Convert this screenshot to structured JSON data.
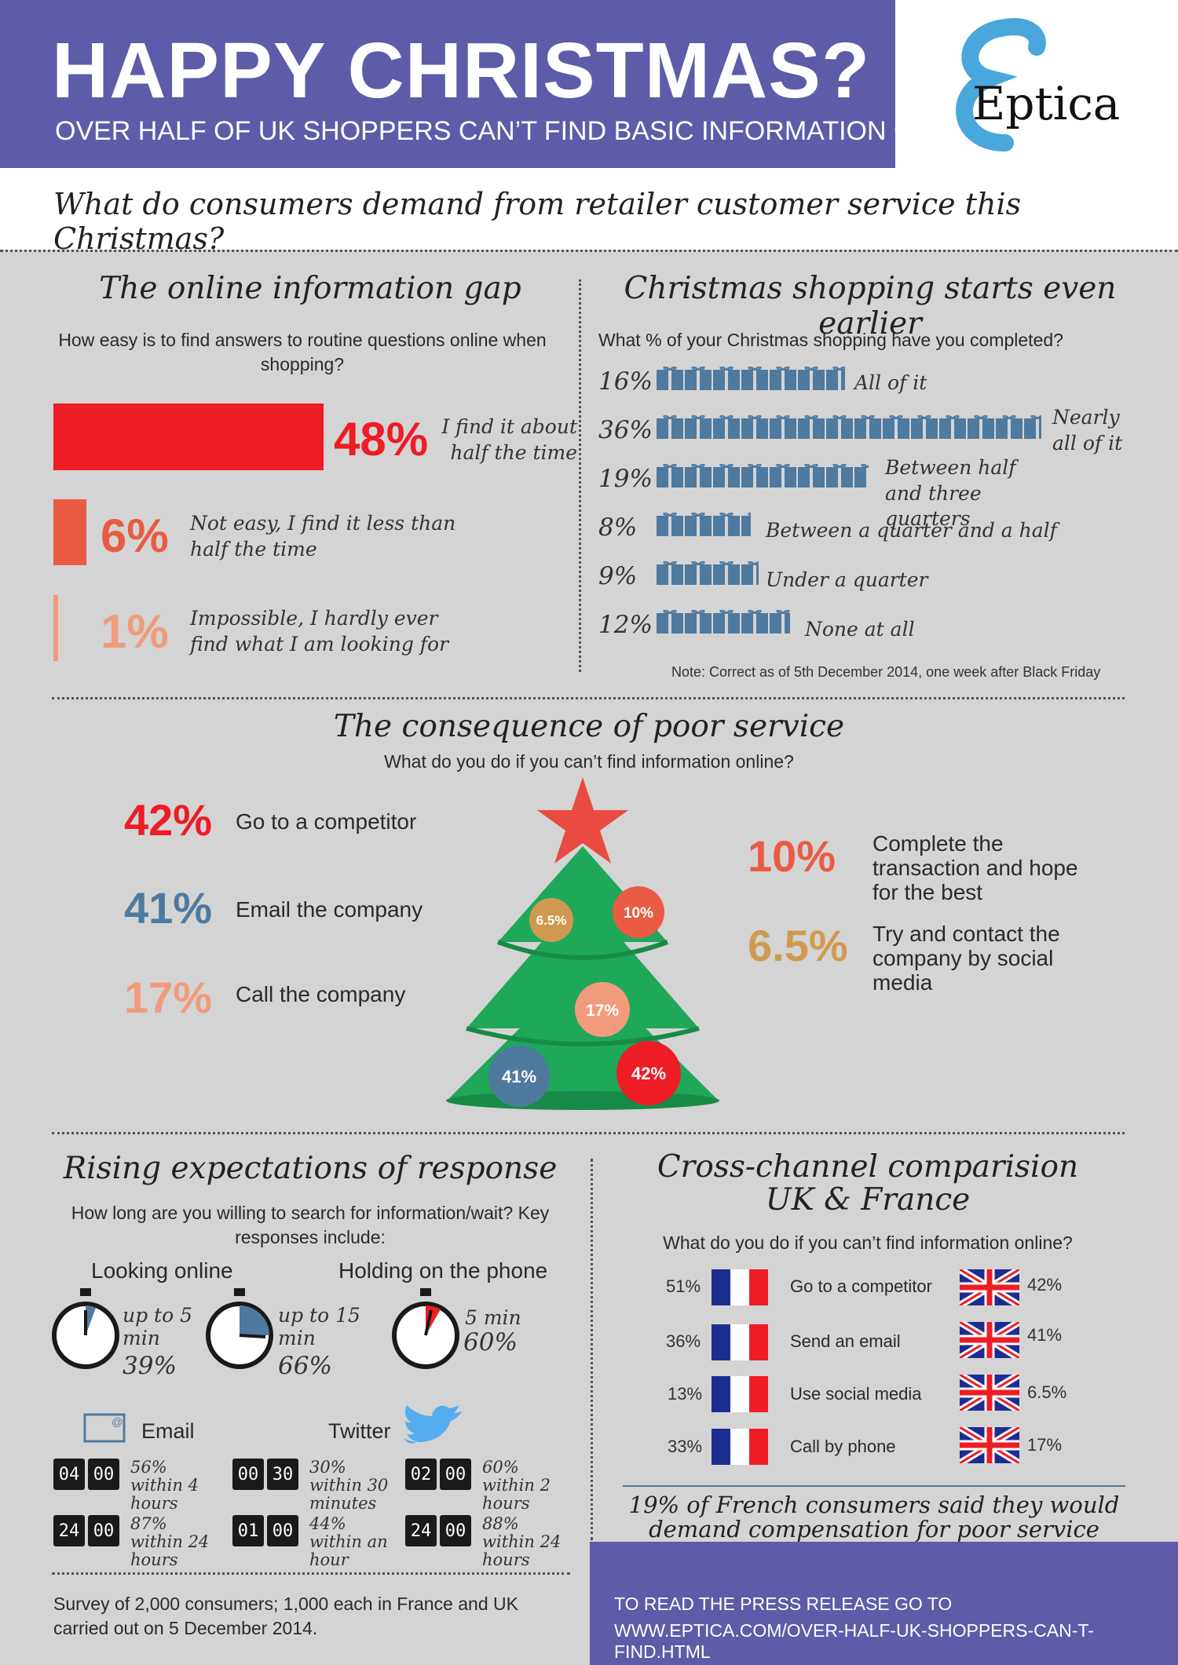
{
  "header": {
    "title": "HAPPY CHRISTMAS?",
    "subtitle": "OVER HALF OF UK SHOPPERS CAN’T FIND BASIC INFORMATION ONLINE",
    "logo_text": "Eptica",
    "brand_color": "#5e5ba8"
  },
  "main_question": "What do consumers demand from retailer customer service this Christmas?",
  "info_gap": {
    "title": "The online information gap",
    "question": "How easy is to find answers to routine questions online when shopping?",
    "items": [
      {
        "pct": "48%",
        "label": "I find it about half the time",
        "value": 48,
        "color": "#ee1c25"
      },
      {
        "pct": "6%",
        "label": "Not easy, I find it less than half the time",
        "value": 6,
        "color": "#e95c43"
      },
      {
        "pct": "1%",
        "label": "Impossible, I hardly ever find what I am looking for",
        "value": 1,
        "color": "#f19b7d"
      }
    ]
  },
  "shopping": {
    "title": "Christmas shopping starts even earlier",
    "question": "What % of your Christmas shopping have you completed?",
    "items": [
      {
        "pct": "16%",
        "label": "All of it",
        "value": 16
      },
      {
        "pct": "36%",
        "label": "Nearly all of it",
        "value": 36
      },
      {
        "pct": "19%",
        "label": "Between half and three quarters",
        "value": 19
      },
      {
        "pct": "8%",
        "label": "Between a quarter and a half",
        "value": 8
      },
      {
        "pct": "9%",
        "label": "Under a quarter",
        "value": 9
      },
      {
        "pct": "12%",
        "label": "None at all",
        "value": 12
      }
    ],
    "note": "Note: Correct as of 5th December 2014, one week after Black Friday",
    "gift_color": "#4f7aa0"
  },
  "consequence": {
    "title": "The consequence of poor service",
    "question": "What do you do if you can’t find information online?",
    "left": [
      {
        "pct": "42%",
        "label": "Go to a competitor",
        "color": "#ee1c25"
      },
      {
        "pct": "41%",
        "label": "Email the company",
        "color": "#4f7aa0"
      },
      {
        "pct": "17%",
        "label": "Call the company",
        "color": "#f19b7d"
      }
    ],
    "right": [
      {
        "pct": "10%",
        "label": "Complete the transaction and hope for the best",
        "color": "#e95c43"
      },
      {
        "pct": "6.5%",
        "label": "Try and contact the company by social media",
        "color": "#cf9a4f"
      }
    ],
    "ornaments": [
      "6.5%",
      "10%",
      "17%",
      "41%",
      "42%"
    ],
    "tree_color": "#1fa75a",
    "star_color": "#e94b41"
  },
  "expectations": {
    "title": "Rising expectations of response",
    "question": "How long are you willing to search for information/wait? Key responses include:",
    "looking_online_label": "Looking online",
    "holding_phone_label": "Holding on the phone",
    "timers": [
      {
        "time": "up to 5 min",
        "pct": "39%"
      },
      {
        "time": "up to 15 min",
        "pct": "66%"
      },
      {
        "time": "5 min",
        "pct": "60%"
      }
    ],
    "email_label": "Email",
    "twitter_label": "Twitter",
    "email": [
      {
        "h": "04",
        "m": "00",
        "label": "56% within 4 hours"
      },
      {
        "h": "24",
        "m": "00",
        "label": "87% within 24 hours"
      }
    ],
    "twitter": [
      {
        "h": "00",
        "m": "30",
        "label": "30% within 30 minutes"
      },
      {
        "h": "01",
        "m": "00",
        "label": "44% within an hour"
      }
    ],
    "phone": [
      {
        "h": "02",
        "m": "00",
        "label": "60% within 2 hours"
      },
      {
        "h": "24",
        "m": "00",
        "label": "88% within 24 hours"
      }
    ]
  },
  "crosschannel": {
    "title_line1": "Cross-channel comparision",
    "title_line2": "UK & France",
    "question": "What do you do if you can’t find information online?",
    "rows": [
      {
        "fr": "51%",
        "label": "Go to a competitor",
        "uk": "42%"
      },
      {
        "fr": "36%",
        "label": "Send an email",
        "uk": "41%"
      },
      {
        "fr": "13%",
        "label": "Use social media",
        "uk": "6.5%"
      },
      {
        "fr": "33%",
        "label": "Call by phone",
        "uk": "17%"
      }
    ],
    "note": "19% of French consumers said they would demand compensation for poor service"
  },
  "footer": {
    "survey": "Survey of 2,000 consumers; 1,000 each in France and UK carried out on 5 December 2014.",
    "cta_line1": "TO READ THE PRESS RELEASE GO TO",
    "cta_line2": "WWW.EPTICA.COM/OVER-HALF-UK-SHOPPERS-CAN-T-FIND.HTML"
  }
}
